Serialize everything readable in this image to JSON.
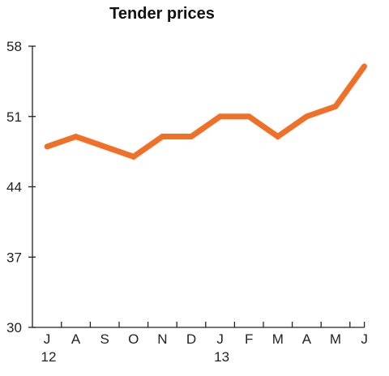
{
  "chart_data": {
    "type": "line",
    "title": "Tender prices",
    "xlabel": "",
    "ylabel": "",
    "categories": [
      "J",
      "A",
      "S",
      "O",
      "N",
      "D",
      "J",
      "F",
      "M",
      "A",
      "M",
      "J"
    ],
    "year_labels": [
      {
        "index": 0,
        "label": "12"
      },
      {
        "index": 6,
        "label": "13"
      }
    ],
    "series": [
      {
        "values": [
          48,
          49,
          48,
          47,
          49,
          49,
          51,
          51,
          49,
          51,
          52,
          56
        ]
      }
    ],
    "ylim": [
      30,
      58
    ],
    "yticks": [
      30,
      37,
      44,
      51,
      58
    ],
    "grid": false,
    "line_color": "#f07028"
  }
}
